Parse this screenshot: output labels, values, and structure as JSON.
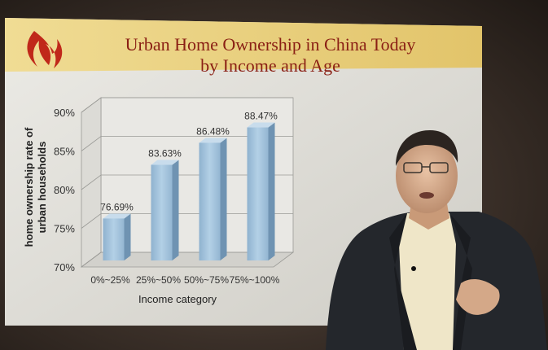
{
  "slide": {
    "title_line1": "Urban Home Ownership in China Today",
    "title_line2": "by Income and Age",
    "colors": {
      "title_band": "#eed98a",
      "title_text": "#8a1f14",
      "logo": "#c0281a",
      "slide_bg": "#e4e4e0",
      "bar": "#9fbfd8"
    }
  },
  "chart_data": {
    "type": "bar",
    "style": "3d",
    "title": "",
    "xlabel": "Income category",
    "ylabel": "home ownership rate of urban households",
    "ylabel_lines": [
      "home ownership rate of",
      "urban households"
    ],
    "categories": [
      "0%~25%",
      "25%~50%",
      "50%~75%",
      "75%~100%"
    ],
    "values": [
      76.69,
      83.63,
      86.48,
      88.47
    ],
    "data_labels": [
      "76.69%",
      "83.63%",
      "86.48%",
      "88.47%"
    ],
    "y_ticks": [
      "70%",
      "75%",
      "80%",
      "85%",
      "90%"
    ],
    "ylim": [
      70,
      90
    ],
    "grid": true,
    "legend": "none"
  },
  "presenter": {
    "icon": "presenter-man-in-dark-jacket"
  }
}
